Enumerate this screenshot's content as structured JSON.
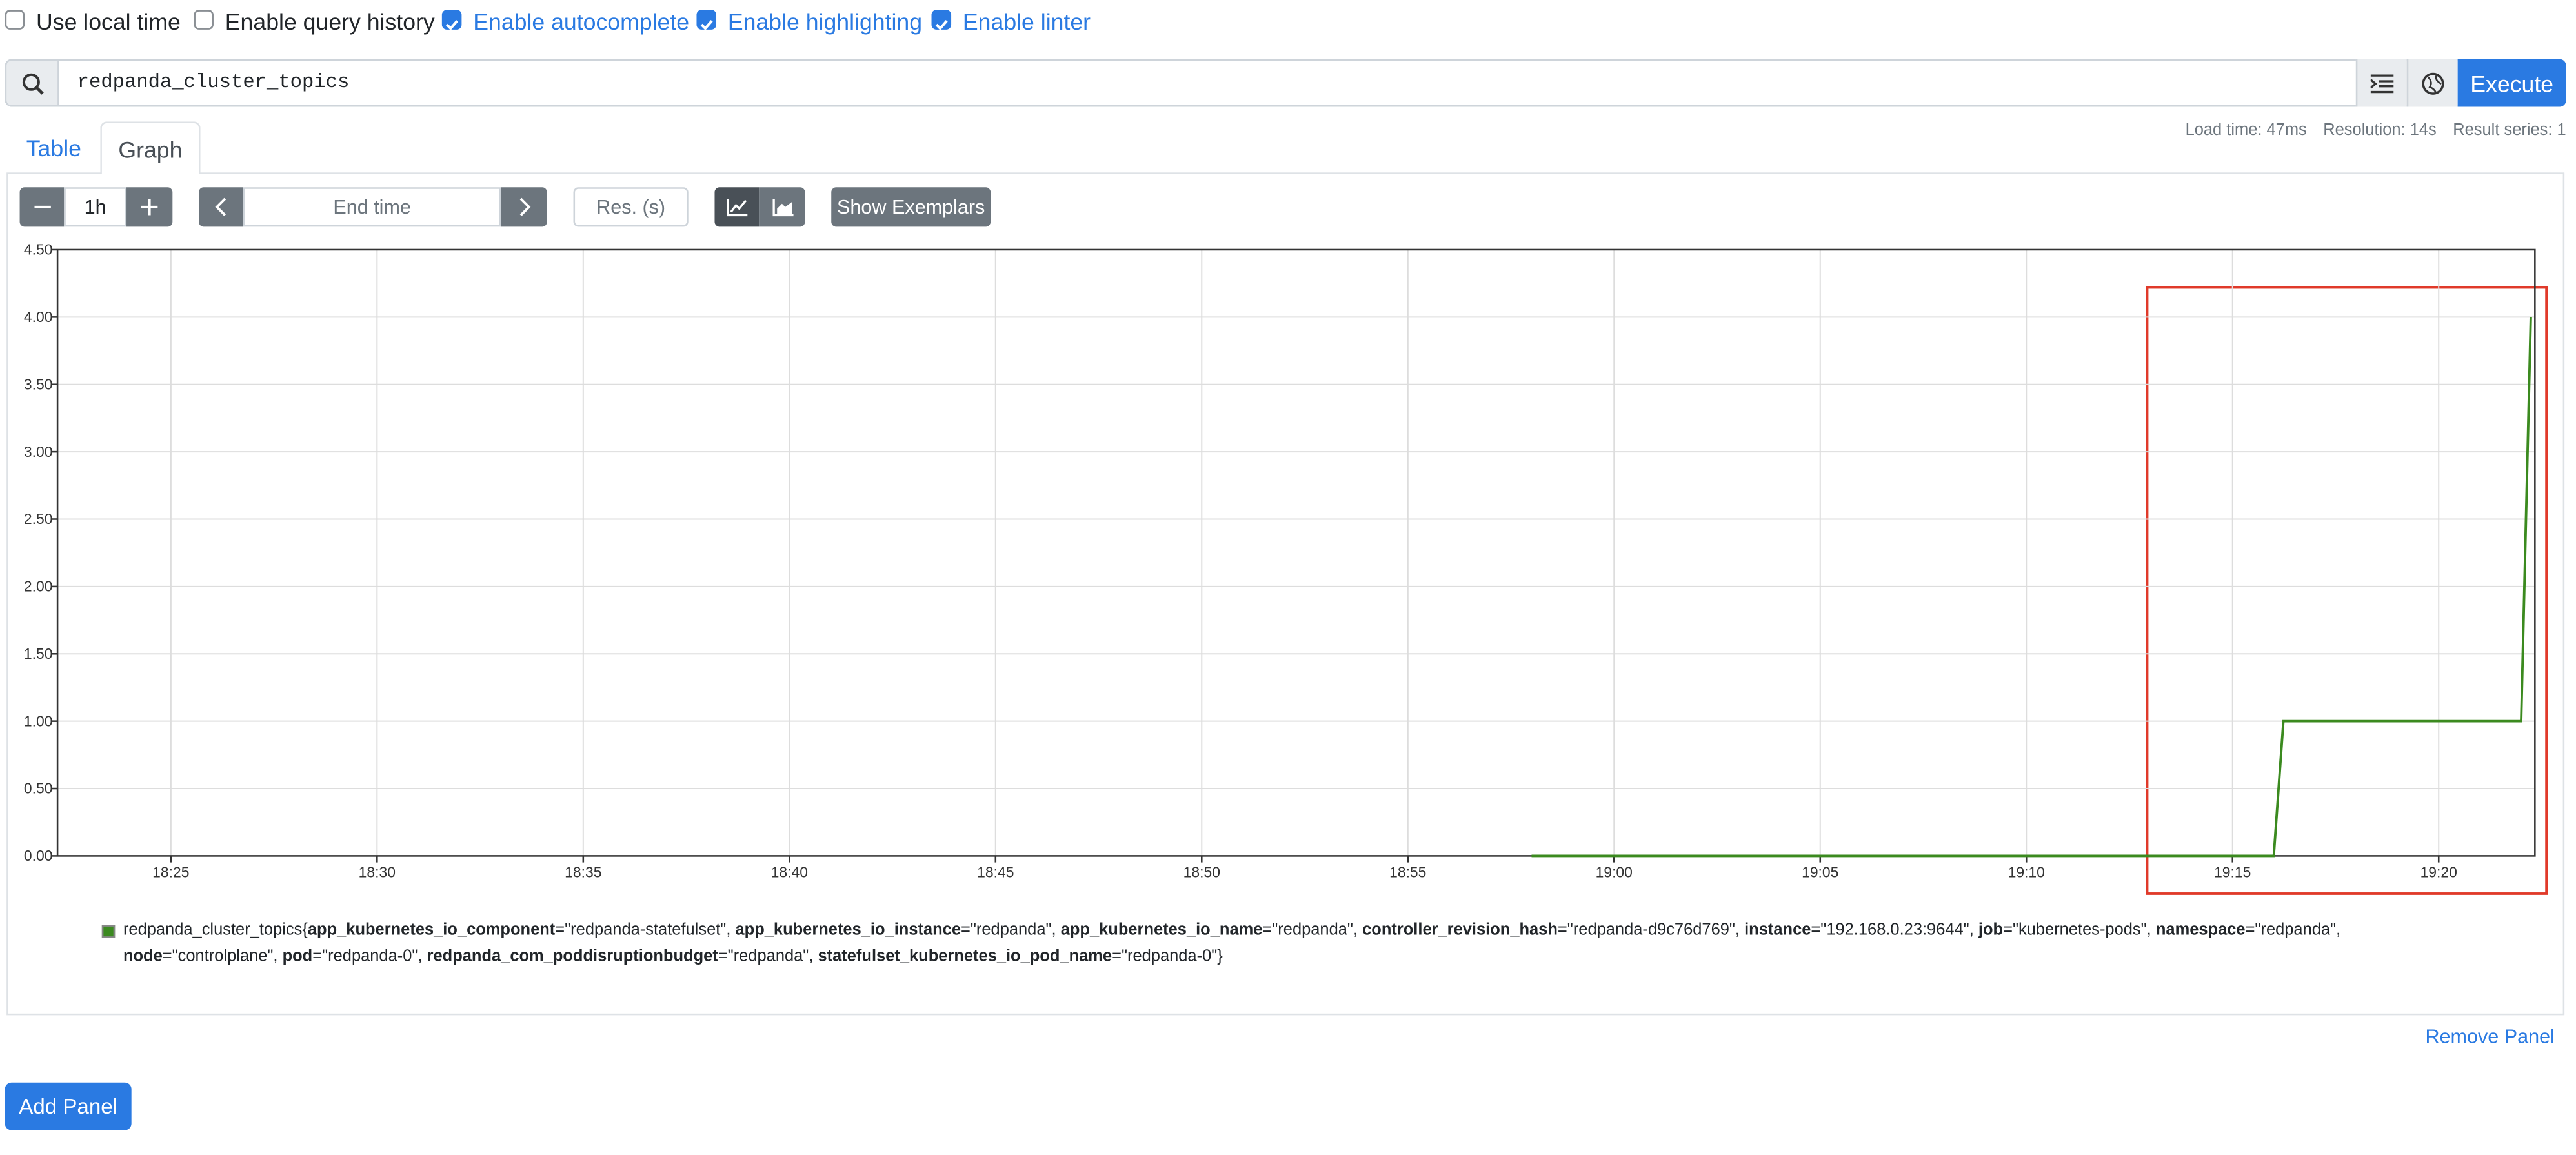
{
  "options": [
    {
      "label": "Use local time",
      "checked": false
    },
    {
      "label": "Enable query history",
      "checked": false
    },
    {
      "label": "Enable autocomplete",
      "checked": true
    },
    {
      "label": "Enable highlighting",
      "checked": true
    },
    {
      "label": "Enable linter",
      "checked": true
    }
  ],
  "query": "redpanda_cluster_topics",
  "execute": "Execute",
  "tabs": [
    "Table",
    "Graph"
  ],
  "stats": [
    "Load time: 47ms",
    "Resolution: 14s",
    "Result series: 1"
  ],
  "controls": {
    "range": "1h",
    "end_time": "End time",
    "resolution": "Res. (s)",
    "exemplars": "Show Exemplars"
  },
  "chart_data": {
    "type": "line",
    "x": [
      "18:58:00",
      "19:16:00",
      "19:16:14",
      "19:22:00",
      "19:22:14"
    ],
    "series": [
      {
        "color": "#3b8a1f",
        "values": [
          0,
          0,
          1,
          1,
          4
        ]
      }
    ],
    "xlim": [
      "18:22:15",
      "19:22:20"
    ],
    "xticks": [
      "18:25",
      "18:30",
      "18:35",
      "18:40",
      "18:45",
      "18:50",
      "18:55",
      "19:00",
      "19:05",
      "19:10",
      "19:15",
      "19:20"
    ],
    "ylim": [
      0,
      4.5
    ],
    "yticks": [
      {
        "value": 0,
        "label": "0.00"
      },
      {
        "value": 0.5,
        "label": "0.50"
      },
      {
        "value": 1,
        "label": "1.00"
      },
      {
        "value": 1.5,
        "label": "1.50"
      },
      {
        "value": 2,
        "label": "2.00"
      },
      {
        "value": 2.5,
        "label": "2.50"
      },
      {
        "value": 3,
        "label": "3.00"
      },
      {
        "value": 3.5,
        "label": "3.50"
      },
      {
        "value": 4,
        "label": "4.00"
      },
      {
        "value": 4.5,
        "label": "4.50"
      }
    ],
    "grid": true,
    "legend": {
      "metric": "redpanda_cluster_topics{",
      "labels": [
        {
          "name": "app_kubernetes_io_component",
          "value": "=\"redpanda-statefulset\", "
        },
        {
          "name": "app_kubernetes_io_instance",
          "value": "=\"redpanda\", "
        },
        {
          "name": "app_kubernetes_io_name",
          "value": "=\"redpanda\", "
        },
        {
          "name": "controller_revision_hash",
          "value": "=\"redpanda-d9c76d769\", "
        },
        {
          "name": "instance",
          "value": "=\"192.168.0.23:9644\", "
        },
        {
          "name": "job",
          "value": "=\"kubernetes-pods\", "
        },
        {
          "name": "namespace",
          "value": "=\"redpanda\", "
        },
        {
          "name": "node",
          "value": "=\"controlplane\", "
        },
        {
          "name": "pod",
          "value": "=\"redpanda-0\", "
        },
        {
          "name": "redpanda_com_poddisruptionbudget",
          "value": "=\"redpanda\", "
        },
        {
          "name": "statefulset_kubernetes_io_pod_name",
          "value": "=\"redpanda-0\"}"
        }
      ]
    }
  },
  "remove_panel": "Remove Panel",
  "add_panel": "Add Panel"
}
